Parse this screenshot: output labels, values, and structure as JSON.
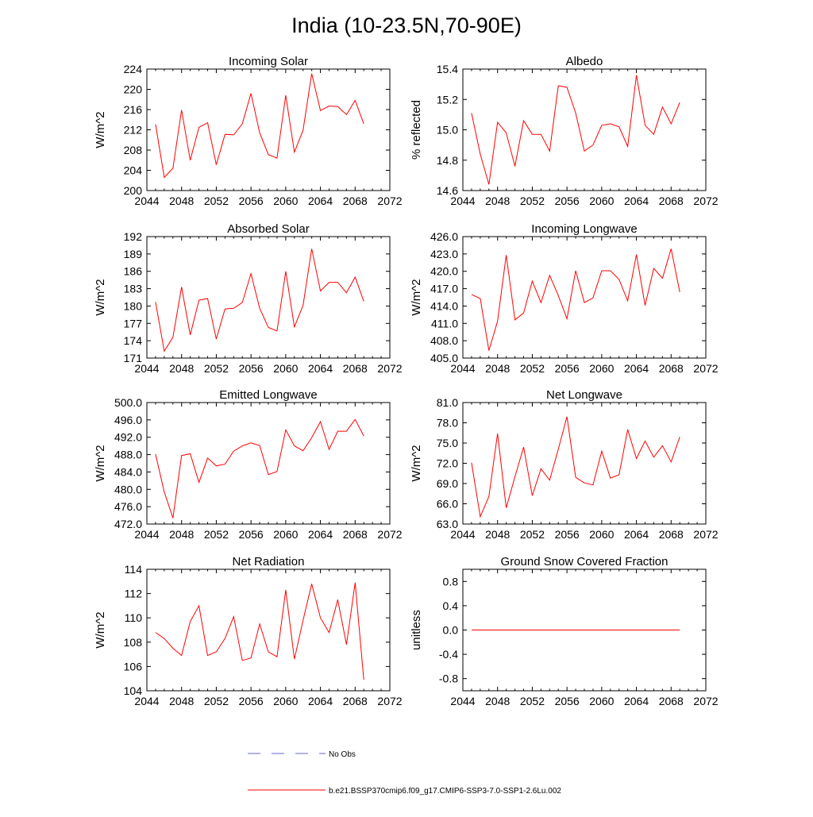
{
  "title": "India (10-23.5N,70-90E)",
  "colors": {
    "series": "#ff0000",
    "no_obs": "#6666cc",
    "axis": "#000000"
  },
  "legend": [
    {
      "label": "No Obs",
      "style": "dashed",
      "color": "#6666cc"
    },
    {
      "label": "b.e21.BSSP370cmip6.f09_g17.CMIP6-SSP3-7.0-SSP1-2.6Lu.002",
      "style": "solid",
      "color": "#ff0000"
    }
  ],
  "chart_data": [
    {
      "type": "line",
      "title": "Incoming Solar",
      "ylabel": "W/m^2",
      "xlim": [
        2044,
        2072
      ],
      "ylim": [
        200,
        224
      ],
      "xticks": [
        "2044",
        "2048",
        "2052",
        "2056",
        "2060",
        "2064",
        "2068",
        "2072"
      ],
      "yticks": [
        {
          "value": 200,
          "label": "200"
        },
        {
          "value": 204,
          "label": "204"
        },
        {
          "value": 208,
          "label": "208"
        },
        {
          "value": 212,
          "label": "212"
        },
        {
          "value": 216,
          "label": "216"
        },
        {
          "value": 220,
          "label": "220"
        },
        {
          "value": 224,
          "label": "224"
        }
      ],
      "x": [
        2045,
        2046,
        2047,
        2048,
        2049,
        2050,
        2051,
        2052,
        2053,
        2054,
        2055,
        2056,
        2057,
        2058,
        2059,
        2060,
        2061,
        2062,
        2063,
        2064,
        2065,
        2066,
        2067,
        2068,
        2069
      ],
      "y": [
        213.1,
        202.6,
        204.4,
        215.9,
        206.0,
        212.5,
        213.4,
        205.1,
        211.1,
        211.0,
        213.2,
        219.2,
        211.4,
        207.1,
        206.4,
        218.8,
        207.6,
        211.9,
        223.1,
        215.8,
        216.7,
        216.6,
        215.0,
        217.8,
        213.2
      ]
    },
    {
      "type": "line",
      "title": "Albedo",
      "ylabel": "% reflected",
      "xlim": [
        2044,
        2072
      ],
      "ylim": [
        14.6,
        15.4
      ],
      "xticks": [
        "2044",
        "2048",
        "2052",
        "2056",
        "2060",
        "2064",
        "2068",
        "2072"
      ],
      "yticks": [
        {
          "value": 14.6,
          "label": "14.6"
        },
        {
          "value": 14.8,
          "label": "14.8"
        },
        {
          "value": 15.0,
          "label": "15.0"
        },
        {
          "value": 15.2,
          "label": "15.2"
        },
        {
          "value": 15.4,
          "label": "15.4"
        }
      ],
      "x": [
        2045,
        2046,
        2047,
        2048,
        2049,
        2050,
        2051,
        2052,
        2053,
        2054,
        2055,
        2056,
        2057,
        2058,
        2059,
        2060,
        2061,
        2062,
        2063,
        2064,
        2065,
        2066,
        2067,
        2068,
        2069
      ],
      "y": [
        15.11,
        14.84,
        14.64,
        15.05,
        14.98,
        14.76,
        15.06,
        14.97,
        14.97,
        14.86,
        15.29,
        15.28,
        15.11,
        14.86,
        14.9,
        15.03,
        15.04,
        15.02,
        14.89,
        15.36,
        15.03,
        14.97,
        15.15,
        15.04,
        15.18
      ]
    },
    {
      "type": "line",
      "title": "Absorbed Solar",
      "ylabel": "W/m^2",
      "xlim": [
        2044,
        2072
      ],
      "ylim": [
        171,
        192
      ],
      "xticks": [
        "2044",
        "2048",
        "2052",
        "2056",
        "2060",
        "2064",
        "2068",
        "2072"
      ],
      "yticks": [
        {
          "value": 171,
          "label": "171"
        },
        {
          "value": 174,
          "label": "174"
        },
        {
          "value": 177,
          "label": "177"
        },
        {
          "value": 180,
          "label": "180"
        },
        {
          "value": 183,
          "label": "183"
        },
        {
          "value": 186,
          "label": "186"
        },
        {
          "value": 189,
          "label": "189"
        },
        {
          "value": 192,
          "label": "192"
        }
      ],
      "x": [
        2045,
        2046,
        2047,
        2048,
        2049,
        2050,
        2051,
        2052,
        2053,
        2054,
        2055,
        2056,
        2057,
        2058,
        2059,
        2060,
        2061,
        2062,
        2063,
        2064,
        2065,
        2066,
        2067,
        2068,
        2069
      ],
      "y": [
        180.7,
        172.2,
        174.6,
        183.3,
        175.0,
        181.0,
        181.3,
        174.3,
        179.5,
        179.6,
        180.6,
        185.6,
        179.6,
        176.3,
        175.7,
        186.0,
        176.4,
        180.1,
        189.9,
        182.6,
        184.1,
        184.1,
        182.3,
        185.0,
        180.8
      ]
    },
    {
      "type": "line",
      "title": "Incoming Longwave",
      "ylabel": "W/m^2",
      "xlim": [
        2044,
        2072
      ],
      "ylim": [
        405,
        426
      ],
      "xticks": [
        "2044",
        "2048",
        "2052",
        "2056",
        "2060",
        "2064",
        "2068",
        "2072"
      ],
      "yticks": [
        {
          "value": 405,
          "label": "405.0"
        },
        {
          "value": 408,
          "label": "408.0"
        },
        {
          "value": 411,
          "label": "411.0"
        },
        {
          "value": 414,
          "label": "414.0"
        },
        {
          "value": 417,
          "label": "417.0"
        },
        {
          "value": 420,
          "label": "420.0"
        },
        {
          "value": 423,
          "label": "423.0"
        },
        {
          "value": 426,
          "label": "426.0"
        }
      ],
      "x": [
        2045,
        2046,
        2047,
        2048,
        2049,
        2050,
        2051,
        2052,
        2053,
        2054,
        2055,
        2056,
        2057,
        2058,
        2059,
        2060,
        2061,
        2062,
        2063,
        2064,
        2065,
        2066,
        2067,
        2068,
        2069
      ],
      "y": [
        416.0,
        415.3,
        406.3,
        411.4,
        422.8,
        411.6,
        412.8,
        418.3,
        414.6,
        419.3,
        415.8,
        411.8,
        420.1,
        414.6,
        415.4,
        420.1,
        420.1,
        418.6,
        414.9,
        422.9,
        414.1,
        420.5,
        418.8,
        423.9,
        416.4
      ]
    },
    {
      "type": "line",
      "title": "Emitted Longwave",
      "ylabel": "W/m^2",
      "xlim": [
        2044,
        2072
      ],
      "ylim": [
        472,
        500
      ],
      "xticks": [
        "2044",
        "2048",
        "2052",
        "2056",
        "2060",
        "2064",
        "2068",
        "2072"
      ],
      "yticks": [
        {
          "value": 472,
          "label": "472.0"
        },
        {
          "value": 476,
          "label": "476.0"
        },
        {
          "value": 480,
          "label": "480.0"
        },
        {
          "value": 484,
          "label": "484.0"
        },
        {
          "value": 488,
          "label": "488.0"
        },
        {
          "value": 492,
          "label": "492.0"
        },
        {
          "value": 496,
          "label": "496.0"
        },
        {
          "value": 500,
          "label": "500.0"
        }
      ],
      "x": [
        2045,
        2046,
        2047,
        2048,
        2049,
        2050,
        2051,
        2052,
        2053,
        2054,
        2055,
        2056,
        2057,
        2058,
        2059,
        2060,
        2061,
        2062,
        2063,
        2064,
        2065,
        2066,
        2067,
        2068,
        2069
      ],
      "y": [
        488.1,
        479.4,
        473.4,
        487.8,
        488.2,
        481.6,
        487.2,
        485.4,
        485.8,
        488.8,
        490.0,
        490.7,
        490.1,
        483.4,
        484.1,
        493.7,
        490.0,
        488.9,
        491.9,
        495.6,
        489.2,
        493.4,
        493.4,
        496.1,
        492.3
      ]
    },
    {
      "type": "line",
      "title": "Net Longwave",
      "ylabel": "W/m^2",
      "xlim": [
        2044,
        2072
      ],
      "ylim": [
        63,
        81
      ],
      "xticks": [
        "2044",
        "2048",
        "2052",
        "2056",
        "2060",
        "2064",
        "2068",
        "2072"
      ],
      "yticks": [
        {
          "value": 63,
          "label": "63.0"
        },
        {
          "value": 66,
          "label": "66.0"
        },
        {
          "value": 69,
          "label": "69.0"
        },
        {
          "value": 72,
          "label": "72.0"
        },
        {
          "value": 75,
          "label": "75.0"
        },
        {
          "value": 78,
          "label": "78.0"
        },
        {
          "value": 81,
          "label": "81.0"
        }
      ],
      "x": [
        2045,
        2046,
        2047,
        2048,
        2049,
        2050,
        2051,
        2052,
        2053,
        2054,
        2055,
        2056,
        2057,
        2058,
        2059,
        2060,
        2061,
        2062,
        2063,
        2064,
        2065,
        2066,
        2067,
        2068,
        2069
      ],
      "y": [
        72.1,
        64.1,
        67.1,
        76.4,
        65.4,
        70.0,
        74.4,
        67.2,
        71.2,
        69.5,
        74.1,
        78.9,
        69.9,
        69.1,
        68.8,
        73.8,
        69.8,
        70.3,
        77.0,
        72.7,
        75.3,
        72.9,
        74.6,
        72.2,
        75.9
      ]
    },
    {
      "type": "line",
      "title": "Net Radiation",
      "ylabel": "W/m^2",
      "xlim": [
        2044,
        2072
      ],
      "ylim": [
        104,
        114
      ],
      "xticks": [
        "2044",
        "2048",
        "2052",
        "2056",
        "2060",
        "2064",
        "2068",
        "2072"
      ],
      "yticks": [
        {
          "value": 104,
          "label": "104"
        },
        {
          "value": 106,
          "label": "106"
        },
        {
          "value": 108,
          "label": "108"
        },
        {
          "value": 110,
          "label": "110"
        },
        {
          "value": 112,
          "label": "112"
        },
        {
          "value": 114,
          "label": "114"
        }
      ],
      "x": [
        2045,
        2046,
        2047,
        2048,
        2049,
        2050,
        2051,
        2052,
        2053,
        2054,
        2055,
        2056,
        2057,
        2058,
        2059,
        2060,
        2061,
        2062,
        2063,
        2064,
        2065,
        2066,
        2067,
        2068,
        2069
      ],
      "y": [
        108.8,
        108.3,
        107.5,
        106.9,
        109.7,
        111.0,
        106.9,
        107.2,
        108.3,
        110.1,
        106.5,
        106.7,
        109.5,
        107.2,
        106.8,
        112.3,
        106.6,
        109.8,
        112.8,
        110.0,
        108.8,
        111.5,
        107.8,
        112.9,
        104.9
      ]
    },
    {
      "type": "line",
      "title": "Ground Snow Covered Fraction",
      "ylabel": "unitless",
      "xlim": [
        2044,
        2072
      ],
      "ylim": [
        -1.0,
        1.0
      ],
      "xticks": [
        "2044",
        "2048",
        "2052",
        "2056",
        "2060",
        "2064",
        "2068",
        "2072"
      ],
      "yticks": [
        {
          "value": -0.8,
          "label": "-0.8"
        },
        {
          "value": -0.4,
          "label": "-0.4"
        },
        {
          "value": 0.0,
          "label": "0.0"
        },
        {
          "value": 0.4,
          "label": "0.4"
        },
        {
          "value": 0.8,
          "label": "0.8"
        }
      ],
      "x": [
        2045,
        2046,
        2047,
        2048,
        2049,
        2050,
        2051,
        2052,
        2053,
        2054,
        2055,
        2056,
        2057,
        2058,
        2059,
        2060,
        2061,
        2062,
        2063,
        2064,
        2065,
        2066,
        2067,
        2068,
        2069
      ],
      "y": [
        0,
        0,
        0,
        0,
        0,
        0,
        0,
        0,
        0,
        0,
        0,
        0,
        0,
        0,
        0,
        0,
        0,
        0,
        0,
        0,
        0,
        0,
        0,
        0,
        0
      ]
    }
  ]
}
